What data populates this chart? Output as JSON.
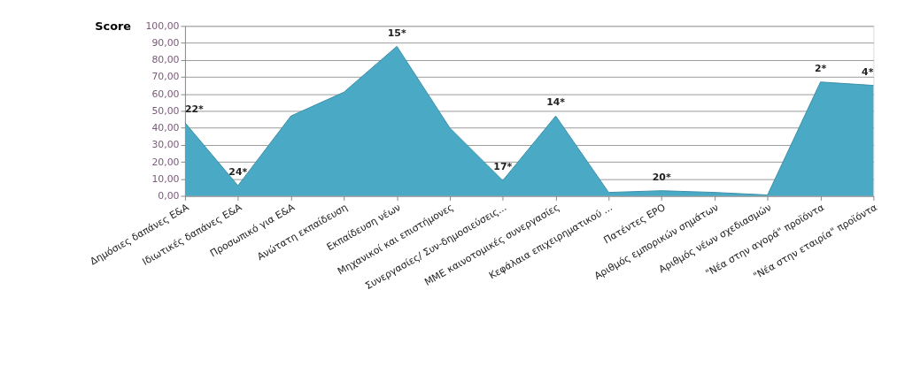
{
  "chart_data": {
    "type": "area",
    "ylabel": "Score",
    "categories": [
      "Δημόσιες δαπάνες Ε&Α",
      "Ιδιωτικές δαπάνες Ε&Α",
      "Προσωπικό για Ε&Α",
      "Ανώτατη εκπαίδευση",
      "Εκπαίδευση νέων",
      "Μηχανικοί και επιστήμονες",
      "Συνεργασίες/ Συν-δημοσιεύσεις...",
      "ΜΜΕ καινοτομικές συνεργασίες",
      "Κεφάλαια επιχειρηματικού ...",
      "Πατέντες EPO",
      "Αριθμός εμπορικών σημάτων",
      "Αριθμός νέων σχεδιασμών",
      "\"Νέα στην αγορά\" προϊόντα",
      "\"Νέα στην εταιρία\" προϊόντα"
    ],
    "series": [
      {
        "color": "#4aa9c5",
        "values": [
          43,
          6,
          47,
          61,
          88,
          40,
          9,
          47,
          2,
          3,
          2,
          0.5,
          67,
          65
        ]
      }
    ],
    "ylim": [
      0,
      100
    ],
    "yticks": [
      {
        "value": 0,
        "label": "0,00"
      },
      {
        "value": 10,
        "label": "10,00"
      },
      {
        "value": 20,
        "label": "20,00"
      },
      {
        "value": 30,
        "label": "30,00"
      },
      {
        "value": 40,
        "label": "40,00"
      },
      {
        "value": 50,
        "label": "50,00"
      },
      {
        "value": 60,
        "label": "60,00"
      },
      {
        "value": 70,
        "label": "70,00"
      },
      {
        "value": 80,
        "label": "80,00"
      },
      {
        "value": 90,
        "label": "90,00"
      },
      {
        "value": 100,
        "label": "100,00"
      }
    ],
    "grid": "y",
    "annotations": [
      {
        "text": "22*",
        "x": "Δημόσιες δαπάνες Ε&Α",
        "y": 43
      },
      {
        "text": "24*",
        "x": "Ιδιωτικές δαπάνες Ε&Α",
        "y": 6
      },
      {
        "text": "15*",
        "x": "Εκπαίδευση νέων",
        "y": 88
      },
      {
        "text": "17*",
        "x": "Συνεργασίες/ Συν-δημοσιεύσεις...",
        "y": 9
      },
      {
        "text": "14*",
        "x": "ΜΜΕ καινοτομικές συνεργασίες",
        "y": 47
      },
      {
        "text": "20*",
        "x": "Πατέντες EPO",
        "y": 3
      },
      {
        "text": "2*",
        "x": "\"Νέα στην αγορά\" προϊόντα",
        "y": 67
      },
      {
        "text": "4*",
        "x": "\"Νέα στην εταιρία\" προϊόντα",
        "y": 65
      }
    ]
  }
}
